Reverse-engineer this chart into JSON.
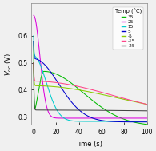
{
  "title": "",
  "xlabel": "Time (s)",
  "ylabel": "$V_{oc}$ (V)",
  "xlim": [
    -2,
    100
  ],
  "ylim": [
    0.27,
    0.72
  ],
  "yticks": [
    0.3,
    0.4,
    0.5,
    0.6
  ],
  "xticks": [
    0,
    20,
    40,
    60,
    80,
    100
  ],
  "legend_title": "Temp (°C)",
  "background_color": "#f0f0f0",
  "figsize": [
    1.95,
    1.89
  ],
  "dpi": 100,
  "params": [
    {
      "label": "35",
      "color": "#00bb00",
      "v0": 0.58,
      "v_min": 0.415,
      "t_min": 1.5,
      "v_peak": 0.468,
      "t_peak": 9,
      "sig_up": 5.0,
      "sig_dn": 35,
      "v_final": 0.265
    },
    {
      "label": "25",
      "color": "#dd00dd",
      "v0": 0.675,
      "v_min": 0.3,
      "t_min": 0.5,
      "v_peak": 0.675,
      "t_peak": 0.0,
      "sig_up": 0.5,
      "sig_dn": 5.5,
      "v_final": 0.295
    },
    {
      "label": "15",
      "color": "#00cccc",
      "v0": 0.6,
      "v_min": 0.32,
      "t_min": 0.8,
      "v_peak": 0.525,
      "t_peak": 0.0,
      "sig_up": 0.5,
      "sig_dn": 11,
      "v_final": 0.283
    },
    {
      "label": "5",
      "color": "#0000cc",
      "v0": 0.58,
      "v_min": 0.35,
      "t_min": 1.0,
      "v_peak": 0.515,
      "t_peak": 0.0,
      "sig_up": 0.5,
      "sig_dn": 22,
      "v_final": 0.281
    },
    {
      "label": "-5",
      "color": "#88cc00",
      "v0": 0.5,
      "v_min": 0.4,
      "t_min": 0.5,
      "v_peak": 0.415,
      "t_peak": 0.0,
      "sig_up": 0.5,
      "sig_dn": 75,
      "v_final": 0.298
    },
    {
      "label": "-15",
      "color": "#ff4488",
      "v0": 0.5,
      "v_min": 0.39,
      "t_min": 0.5,
      "v_peak": 0.432,
      "t_peak": 0.0,
      "sig_up": 0.5,
      "sig_dn": 70,
      "v_final": 0.298
    },
    {
      "label": "-25",
      "color": "#444444",
      "v0": 0.5,
      "v_min": 0.315,
      "t_min": 0.3,
      "v_peak": 0.325,
      "t_peak": 0.0,
      "sig_up": 0.3,
      "sig_dn": 200,
      "v_final": 0.3
    }
  ]
}
